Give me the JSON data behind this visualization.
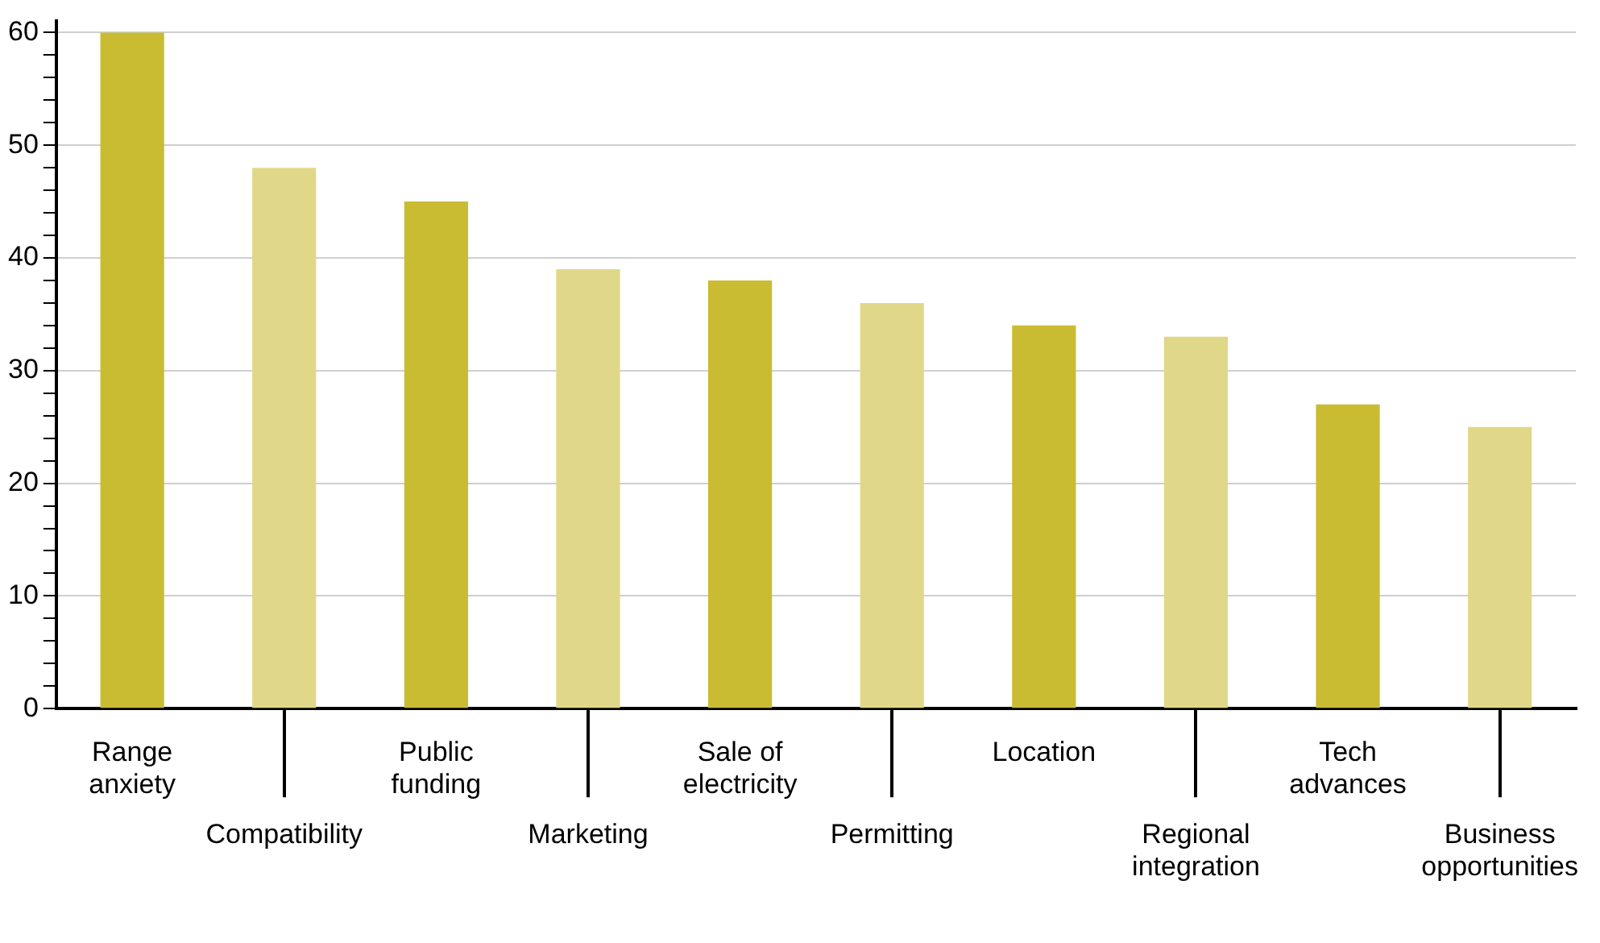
{
  "chart_data": {
    "type": "bar",
    "categories": [
      "Range anxiety",
      "Compatibility",
      "Public funding",
      "Marketing",
      "Sale of electricity",
      "Permitting",
      "Location",
      "Regional integration",
      "Tech advances",
      "Business opportunities"
    ],
    "values": [
      60,
      48,
      45,
      39,
      38,
      36,
      34,
      33,
      27,
      25
    ],
    "colors": [
      "#c9bc32",
      "#e0d888",
      "#c9bc32",
      "#e0d888",
      "#c9bc32",
      "#e0d888",
      "#c9bc32",
      "#e0d888",
      "#c9bc32",
      "#e0d888"
    ],
    "ylim": [
      0,
      61
    ],
    "yticks": [
      0,
      {
        "value": 2,
        "label": null
      },
      {
        "value": 4,
        "label": null
      },
      {
        "value": 6,
        "label": null
      },
      {
        "value": 8,
        "label": null
      },
      10,
      {
        "value": 12,
        "label": null
      },
      {
        "value": 14,
        "label": null
      },
      {
        "value": 16,
        "label": null
      },
      {
        "value": 18,
        "label": null
      },
      20,
      {
        "value": 22,
        "label": null
      },
      {
        "value": 24,
        "label": null
      },
      {
        "value": 26,
        "label": null
      },
      {
        "value": 28,
        "label": null
      },
      30,
      {
        "value": 32,
        "label": null
      },
      {
        "value": 34,
        "label": null
      },
      {
        "value": 36,
        "label": null
      },
      {
        "value": 38,
        "label": null
      },
      40,
      {
        "value": 42,
        "label": null
      },
      {
        "value": 44,
        "label": null
      },
      {
        "value": 46,
        "label": null
      },
      {
        "value": 48,
        "label": null
      },
      50,
      {
        "value": 52,
        "label": null
      },
      {
        "value": 54,
        "label": null
      },
      {
        "value": 56,
        "label": null
      },
      {
        "value": 58,
        "label": null
      },
      60
    ],
    "grid": "y",
    "legend": false
  }
}
